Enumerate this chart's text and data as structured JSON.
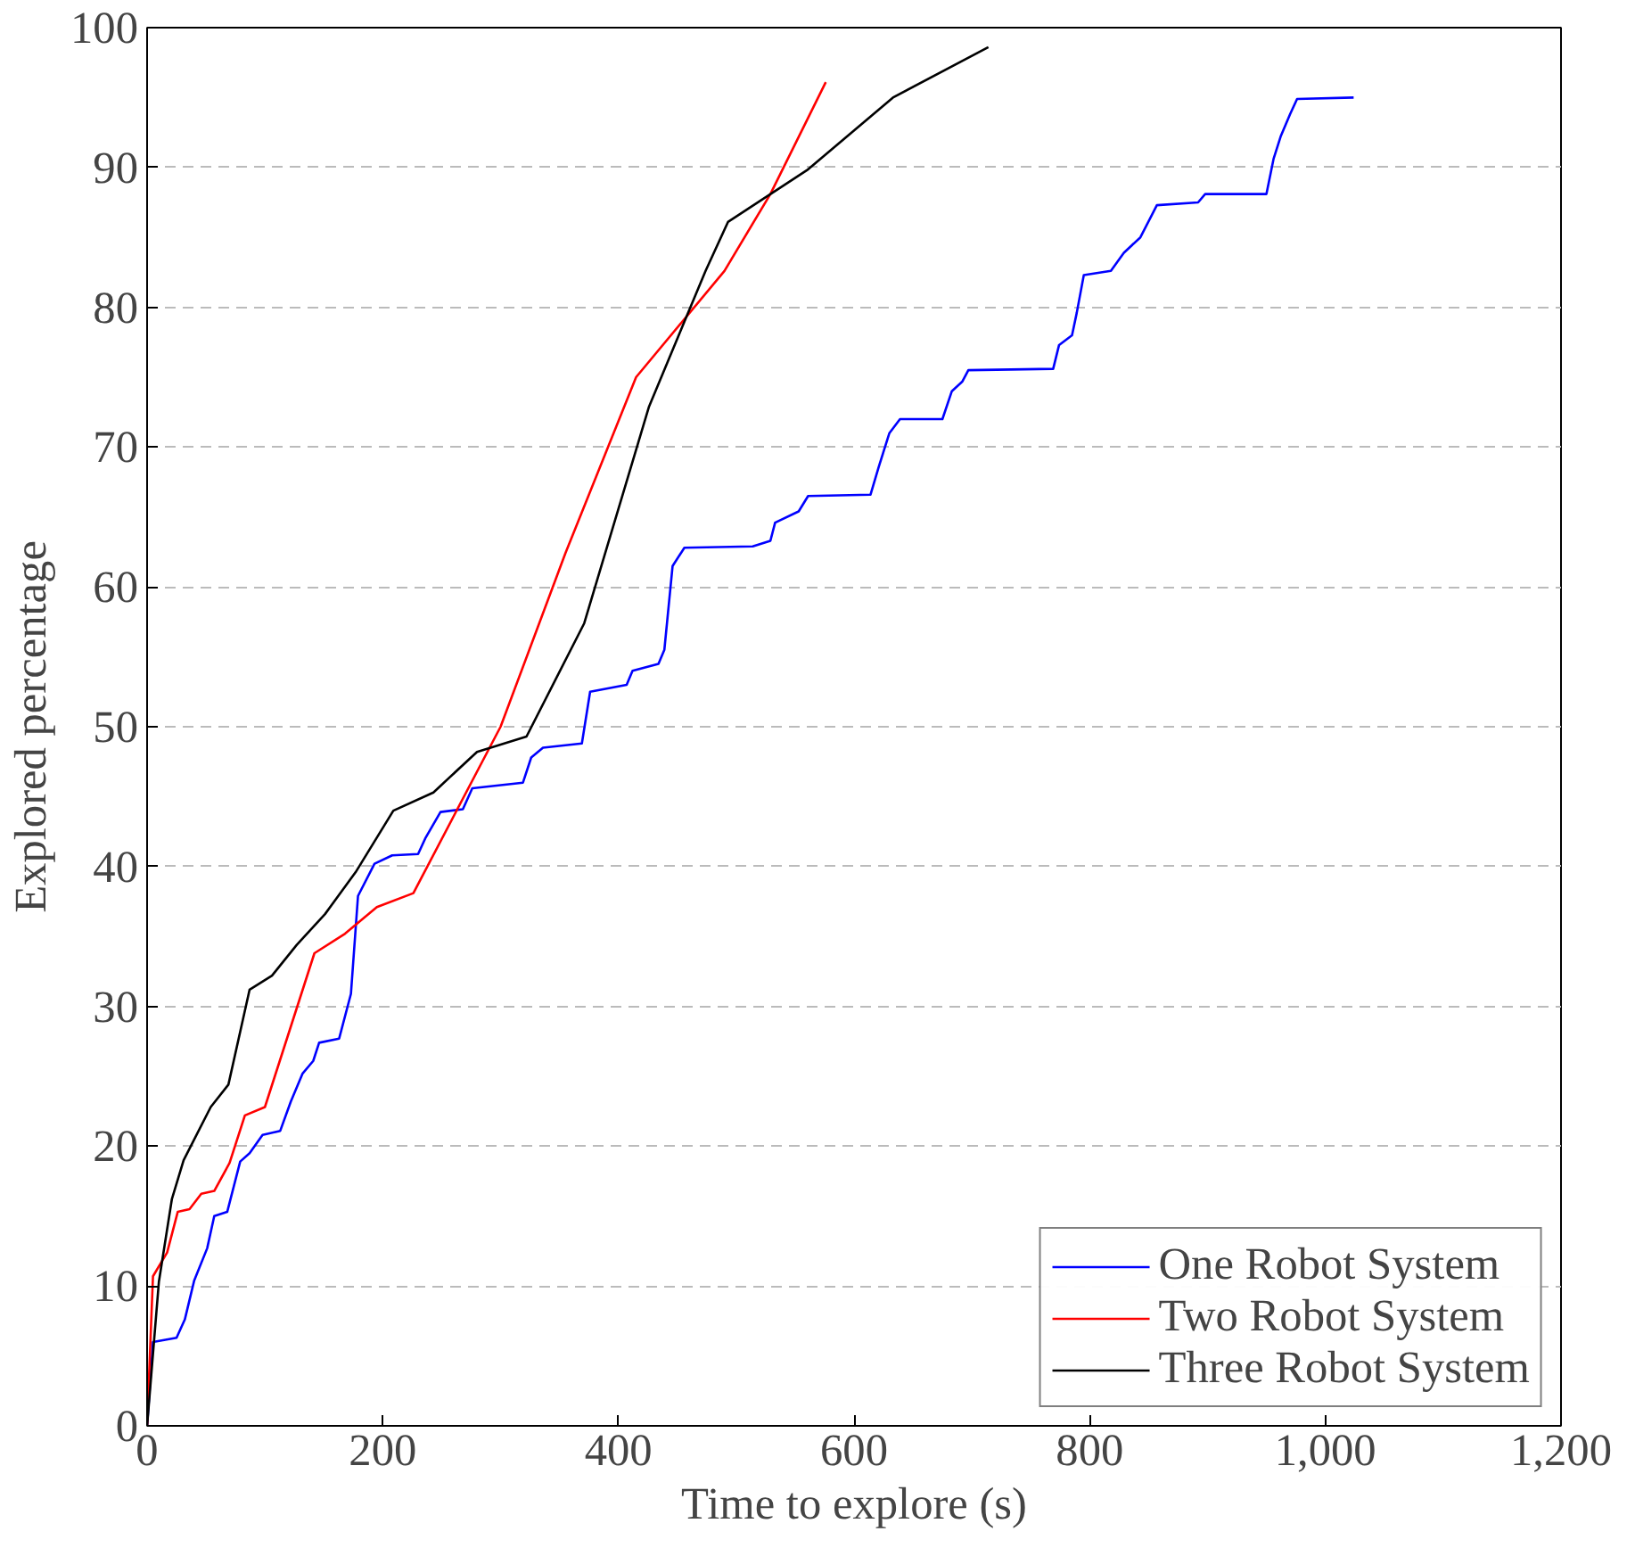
{
  "chart_data": {
    "type": "line",
    "xlabel": "Time to explore (s)",
    "ylabel": "Explored percentage",
    "xlim": [
      0,
      1200
    ],
    "ylim": [
      0,
      100
    ],
    "xticks": [
      0,
      200,
      400,
      600,
      800,
      {
        "value": 1000,
        "label": "1,000"
      },
      {
        "value": 1200,
        "label": "1,200"
      }
    ],
    "yticks": [
      0,
      10,
      20,
      30,
      40,
      50,
      60,
      70,
      80,
      90,
      100
    ],
    "grid": "y",
    "legend": "bottom right",
    "marker": "none",
    "line_style": "solid",
    "series": [
      {
        "name": "One Robot System",
        "color": "#0000ff",
        "x": [
          0,
          5,
          25,
          32,
          40,
          51,
          57,
          68,
          79,
          87,
          98,
          113,
          122,
          132,
          141,
          146,
          163,
          173,
          179,
          193,
          208,
          230,
          236,
          249,
          268,
          276,
          319,
          326,
          336,
          369,
          376,
          407,
          412,
          434,
          439,
          446,
          456,
          514,
          529,
          533,
          553,
          561,
          614,
          621,
          630,
          639,
          675,
          683,
          692,
          697,
          769,
          774,
          785,
          789,
          795,
          818,
          829,
          843,
          857,
          892,
          898,
          950,
          956,
          962,
          970,
          976,
          1024
        ],
        "values": [
          0,
          6,
          6.3,
          7.6,
          10.4,
          12.7,
          15,
          15.3,
          18.9,
          19.5,
          20.8,
          21.1,
          23.2,
          25.2,
          26.1,
          27.4,
          27.7,
          30.9,
          37.9,
          40.2,
          40.8,
          40.9,
          42,
          43.9,
          44.1,
          45.6,
          46,
          47.8,
          48.5,
          48.8,
          52.5,
          53,
          54,
          54.5,
          55.5,
          61.5,
          62.8,
          62.9,
          63.3,
          64.6,
          65.4,
          66.5,
          66.6,
          68.6,
          71,
          72,
          72,
          74,
          74.7,
          75.5,
          75.6,
          77.3,
          78,
          79.6,
          82.3,
          82.6,
          83.9,
          85,
          87.3,
          87.5,
          88.1,
          88.1,
          90.6,
          92.2,
          93.8,
          94.9,
          95
        ]
      },
      {
        "name": "Two Robot System",
        "color": "#ff0000",
        "x": [
          0,
          5,
          17,
          26,
          36,
          46,
          57,
          70,
          83,
          100,
          142,
          168,
          195,
          226,
          300,
          355,
          415,
          490,
          529,
          576
        ],
        "values": [
          0,
          10.7,
          12.4,
          15.3,
          15.5,
          16.6,
          16.8,
          18.8,
          22.2,
          22.8,
          33.8,
          35.2,
          37.1,
          38.1,
          50,
          62.4,
          75,
          82.6,
          88.1,
          96.1
        ]
      },
      {
        "name": "Three Robot System",
        "color": "#000000",
        "x": [
          0,
          10,
          21,
          31,
          54,
          69,
          87,
          106,
          127,
          151,
          177,
          209,
          243,
          280,
          322,
          371,
          426,
          474,
          493,
          560,
          633,
          714
        ],
        "values": [
          0,
          10.3,
          16.2,
          19,
          22.8,
          24.4,
          31.2,
          32.2,
          34.4,
          36.6,
          39.6,
          44,
          45.3,
          48.2,
          49.3,
          57.4,
          72.9,
          82.6,
          86.1,
          89.8,
          95,
          98.6
        ]
      }
    ]
  }
}
